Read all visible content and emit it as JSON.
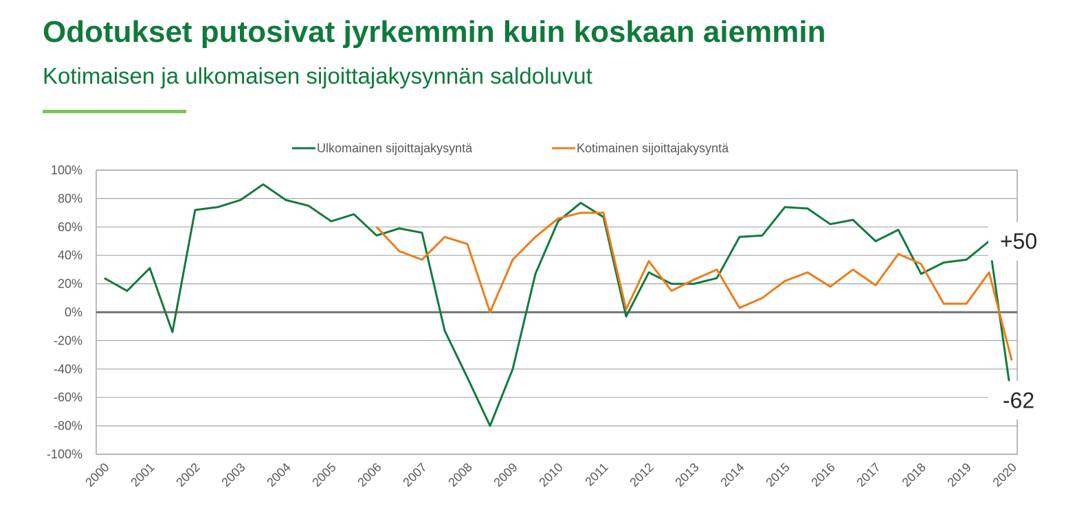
{
  "header": {
    "title": "Odotukset putosivat jyrkemmin kuin koskaan aiemmin",
    "subtitle": "Kotimaisen ja ulkomaisen sijoittajakysynnän saldoluvut"
  },
  "colors": {
    "title": "#0f7a3c",
    "accent_rule": "#7dc35b",
    "foreign": "#137a3e",
    "domestic": "#ed7d19",
    "grid": "#a6a6a6",
    "zero_line": "#707070",
    "axis_text": "#595959"
  },
  "chart_data": {
    "type": "line",
    "title": "",
    "xlabel": "",
    "ylabel": "",
    "ylim": [
      -100,
      100
    ],
    "y_ticks": [
      "100%",
      "80%",
      "60%",
      "40%",
      "20%",
      "0%",
      "-20%",
      "-40%",
      "-60%",
      "-80%",
      "-100%"
    ],
    "x_tick_labels": [
      "2000",
      "2001",
      "2002",
      "2003",
      "2004",
      "2005",
      "2006",
      "2007",
      "2008",
      "2009",
      "2010",
      "2011",
      "2012",
      "2013",
      "2014",
      "2015",
      "2016",
      "2017",
      "2018",
      "2019",
      "2020"
    ],
    "grid": true,
    "legend_position": "top-center",
    "series": [
      {
        "name": "Ulkomainen sijoittajakysyntä",
        "color": "#137a3e",
        "x": [
          2000.0,
          2000.5,
          2001.0,
          2001.5,
          2002.0,
          2002.5,
          2003.0,
          2003.5,
          2004.0,
          2004.5,
          2005.0,
          2005.5,
          2006.0,
          2006.5,
          2007.0,
          2007.5,
          2008.0,
          2008.5,
          2009.0,
          2009.5,
          2010.0,
          2010.5,
          2011.0,
          2011.5,
          2012.0,
          2012.5,
          2013.0,
          2013.5,
          2014.0,
          2014.5,
          2015.0,
          2015.5,
          2016.0,
          2016.5,
          2017.0,
          2017.5,
          2018.0,
          2018.5,
          2019.0,
          2019.5,
          2020.0
        ],
        "values": [
          24,
          15,
          31,
          -14,
          72,
          74,
          79,
          90,
          79,
          75,
          64,
          69,
          54,
          59,
          56,
          -13,
          -46,
          -80,
          -40,
          27,
          64,
          77,
          67,
          -3,
          28,
          20,
          20,
          24,
          53,
          54,
          74,
          73,
          62,
          65,
          50,
          58,
          27,
          35,
          37,
          50,
          -62
        ]
      },
      {
        "name": "Kotimainen sijoittajakysyntä",
        "color": "#ed7d19",
        "x": [
          2006.0,
          2006.5,
          2007.0,
          2007.5,
          2008.0,
          2008.5,
          2009.0,
          2009.5,
          2010.0,
          2010.5,
          2011.0,
          2011.5,
          2012.0,
          2012.5,
          2013.0,
          2013.5,
          2014.0,
          2014.5,
          2015.0,
          2015.5,
          2016.0,
          2016.5,
          2017.0,
          2017.5,
          2018.0,
          2018.5,
          2019.0,
          2019.5,
          2020.0
        ],
        "values": [
          60,
          43,
          37,
          53,
          48,
          0,
          37,
          53,
          66,
          70,
          70,
          2,
          36,
          15,
          23,
          30,
          3,
          10,
          22,
          28,
          18,
          30,
          19,
          41,
          34,
          6,
          6,
          28,
          -34
        ]
      }
    ],
    "annotations": [
      {
        "text": "+50",
        "series": "Ulkomainen sijoittajakysyntä",
        "value": 50
      },
      {
        "text": "-62",
        "series": "Ulkomainen sijoittajakysyntä",
        "value": -62
      }
    ]
  }
}
